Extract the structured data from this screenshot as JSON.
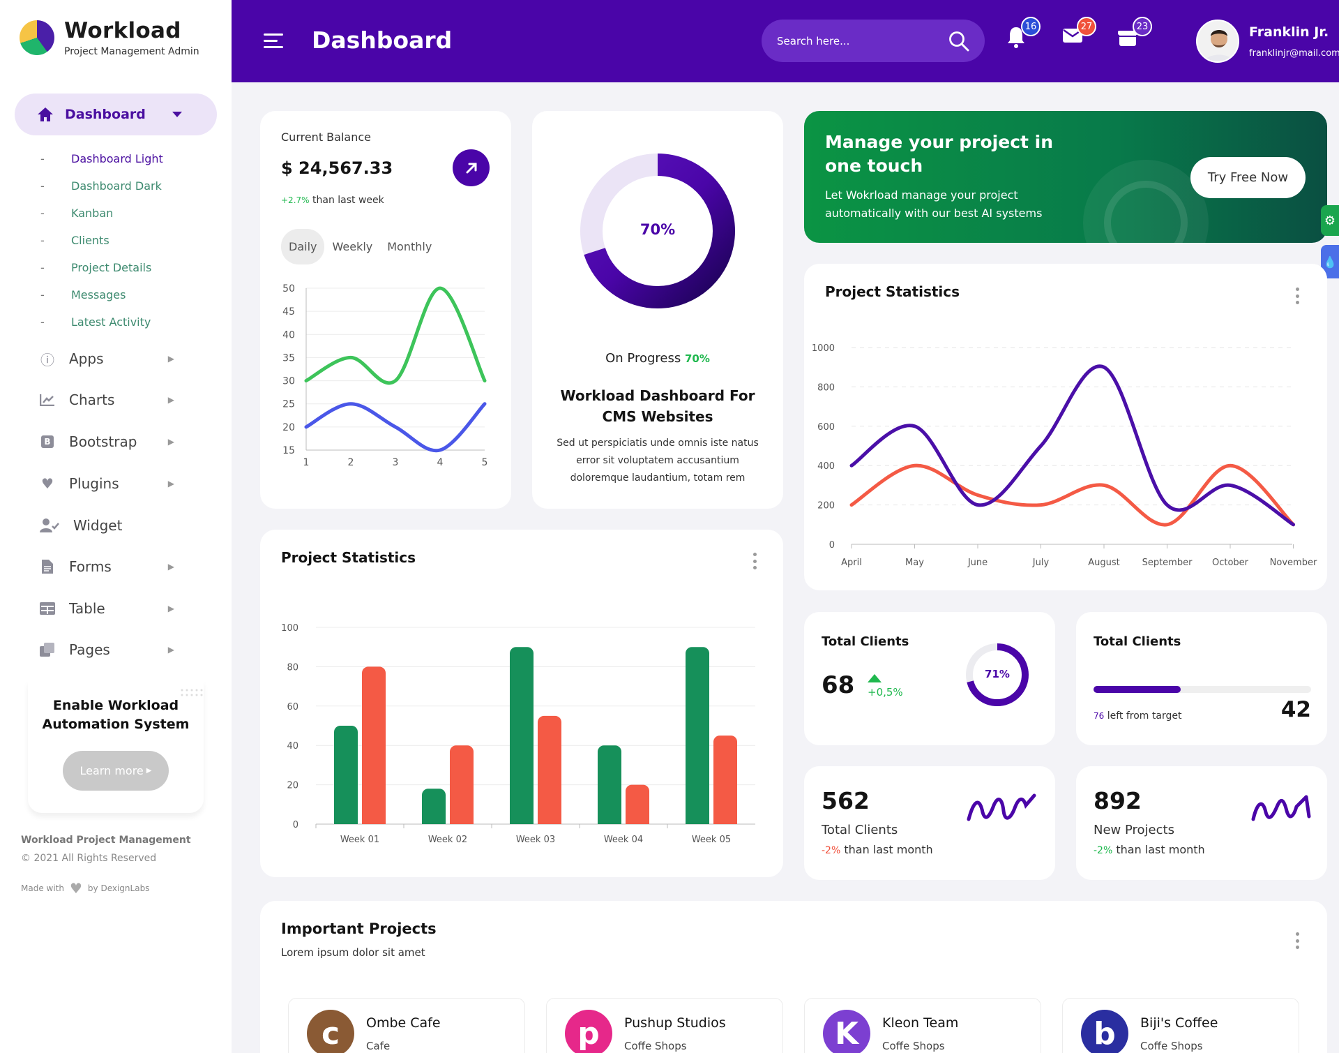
{
  "brand": {
    "title": "Workload",
    "subtitle": "Project Management Admin"
  },
  "sidebar": {
    "active": {
      "label": "Dashboard"
    },
    "submenu": [
      "Dashboard Light",
      "Dashboard Dark",
      "Kanban",
      "Clients",
      "Project Details",
      "Messages",
      "Latest Activity"
    ],
    "items": [
      {
        "label": "Apps",
        "icon": "info-icon"
      },
      {
        "label": "Charts",
        "icon": "chart-icon"
      },
      {
        "label": "Bootstrap",
        "icon": "bootstrap-icon"
      },
      {
        "label": "Plugins",
        "icon": "heart-icon"
      },
      {
        "label": "Widget",
        "icon": "user-check-icon"
      },
      {
        "label": "Forms",
        "icon": "file-icon"
      },
      {
        "label": "Table",
        "icon": "table-icon"
      },
      {
        "label": "Pages",
        "icon": "pages-icon"
      }
    ],
    "promo": {
      "title_line1": "Enable Workload",
      "title_line2": "Automation System",
      "button": "Learn more"
    },
    "footer": {
      "name": "Workload Project Management",
      "copyright": "© 2021 All Rights Reserved",
      "made_with": "Made with",
      "by": "by DexignLabs"
    }
  },
  "header": {
    "title": "Dashboard",
    "search_placeholder": "Search here...",
    "notifications": {
      "count": "16",
      "color": "#2b4ed8"
    },
    "messages": {
      "count": "27",
      "color": "#f0513c"
    },
    "gifts": {
      "count": "23",
      "color": "#6a2cc6"
    },
    "user": {
      "name": "Franklin Jr.",
      "email": "franklinjr@mail.com"
    }
  },
  "balance": {
    "label": "Current Balance",
    "amount": "$ 24,567.33",
    "change": "+2.7%",
    "change_text": "than last week",
    "tabs": [
      "Daily",
      "Weekly",
      "Monthly"
    ]
  },
  "progress": {
    "percent_label": "70%",
    "percent": 0.7,
    "status_label": "On Progress",
    "status_value": "70%",
    "title_line1": "Workload Dashboard For",
    "title_line2": "CMS Websites",
    "desc_line1": "Sed ut perspiciatis unde omnis iste natus",
    "desc_line2": "error sit voluptatem accusantium",
    "desc_line3": "doloremque laudantium, totam rem"
  },
  "banner": {
    "title_line1": "Manage your project in",
    "title_line2": "one touch",
    "text_line1": "Let Wokrload manage your project",
    "text_line2": "automatically with our best AI systems",
    "button": "Try Free Now"
  },
  "project_stats_bar": {
    "title": "Project Statistics"
  },
  "project_stats_line": {
    "title": "Project Statistics"
  },
  "total_clients_a": {
    "title": "Total Clients",
    "value": "68",
    "change": "+0,5%",
    "ring_label": "71%",
    "ring": 0.71
  },
  "total_clients_b": {
    "title": "Total Clients",
    "value": "42",
    "left_num": "76",
    "left_text": "left from target",
    "progress": 0.4
  },
  "kpi_clients": {
    "value": "562",
    "label": "Total Clients",
    "change": "-2%",
    "change_text": "than last month"
  },
  "kpi_projects": {
    "value": "892",
    "label": "New Projects",
    "change": "-2%",
    "change_text": "than last month"
  },
  "important": {
    "title": "Important Projects",
    "subtitle": "Lorem ipsum dolor sit amet",
    "items": [
      {
        "name": "Ombe Cafe",
        "type": "Cafe",
        "letter": "c",
        "color": "#8a5a34"
      },
      {
        "name": "Pushup Studios",
        "type": "Coffe Shops",
        "letter": "p",
        "color": "#e6288a"
      },
      {
        "name": "Kleon Team",
        "type": "Coffe Shops",
        "letter": "K",
        "color": "#7c3fd1"
      },
      {
        "name": "Biji's Coffee",
        "type": "Coffe Shops",
        "letter": "b",
        "color": "#2a2ea0"
      }
    ]
  },
  "chart_data": [
    {
      "type": "line",
      "title": "",
      "x": [
        1,
        2,
        3,
        4,
        5
      ],
      "ylim": [
        15,
        50
      ],
      "yticks": [
        50,
        45,
        40,
        35,
        30,
        25,
        20,
        15
      ],
      "series": [
        {
          "values": [
            30,
            35,
            30,
            50,
            30
          ],
          "color": "#3dc45a"
        },
        {
          "values": [
            20,
            25,
            20,
            15,
            25
          ],
          "color": "#4a57e8"
        }
      ]
    },
    {
      "type": "bar",
      "title": "Project Statistics",
      "categories": [
        "Week 01",
        "Week 02",
        "Week 03",
        "Week 04",
        "Week 05"
      ],
      "ylim": [
        0,
        100
      ],
      "yticks": [
        100,
        80,
        60,
        40,
        20,
        0
      ],
      "series": [
        {
          "values": [
            50,
            18,
            90,
            40,
            90
          ],
          "color": "#16905a"
        },
        {
          "values": [
            80,
            40,
            55,
            20,
            45
          ],
          "color": "#f45a45"
        }
      ]
    },
    {
      "type": "line",
      "title": "Project Statistics",
      "categories": [
        "April",
        "May",
        "June",
        "July",
        "August",
        "September",
        "October",
        "November"
      ],
      "ylim": [
        0,
        1000
      ],
      "yticks": [
        1000,
        800,
        600,
        400,
        200,
        0
      ],
      "series": [
        {
          "values": [
            400,
            600,
            200,
            500,
            900,
            200,
            300,
            100
          ],
          "color": "#4a0fa8"
        },
        {
          "values": [
            200,
            400,
            250,
            200,
            300,
            100,
            400,
            100
          ],
          "color": "#f45a45"
        }
      ]
    }
  ]
}
